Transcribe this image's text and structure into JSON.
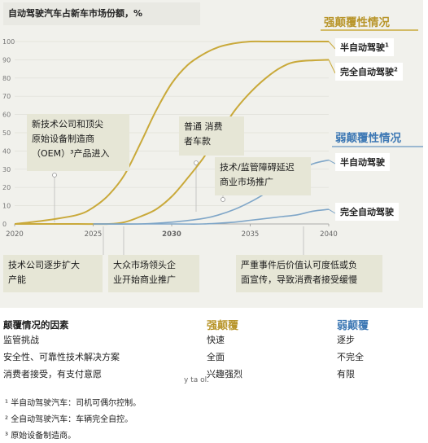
{
  "colors": {
    "strong": "#c9a93a",
    "weak": "#7fa6c8",
    "panel": "#f1f1ec",
    "annotation": "#e6e6d6",
    "strong_text": "#b8952a",
    "weak_text": "#3d78b4"
  },
  "chart_title": "自动驾驶汽车占新车市场份额，%",
  "header_strong": "强颠覆性情况",
  "header_weak": "弱颠覆性情况",
  "labels": {
    "strong_semi": "半自动驾驶",
    "strong_semi_sup": "1",
    "strong_full": "完全自动驾驶",
    "strong_full_sup": "2",
    "weak_semi": "半自动驾驶",
    "weak_full": "完全自动驾驶"
  },
  "annotations": [
    {
      "lines": [
        "新技术公司和顶尖",
        "原始设备制造商",
        "（OEM）³产品进入"
      ]
    },
    {
      "lines": [
        "普通 消费",
        "者车款"
      ]
    },
    {
      "lines": [
        "技术/监管障碍延迟",
        "商业市场推广"
      ]
    },
    {
      "lines": [
        "技术公司逐步扩大",
        "产能"
      ]
    },
    {
      "lines": [
        "大众市场领头企",
        "业开始商业推广"
      ]
    },
    {
      "lines": [
        "严重事件后价值认可度低或负",
        "面宣传，导致消费者接受缓慢"
      ]
    }
  ],
  "legend": {
    "factor_title": "颠覆情况的因素",
    "factors": [
      "监管挑战",
      "安全性、可靠性技术解决方案",
      "消费者接受，有支付意愿"
    ],
    "strong_title": "强颠覆",
    "strong": [
      "快速",
      "全面",
      "兴趣强烈"
    ],
    "weak_title": "弱颠覆",
    "weak": [
      "逐步",
      "不完全",
      "有限"
    ]
  },
  "faint_text": "y ta                                    ol.",
  "footnotes": [
    "¹ 半自动驾驶汽车：司机可偶尔控制。",
    "² 全自动驾驶汽车：车辆完全自控。",
    "³ 原始设备制造商。"
  ],
  "chart_data": {
    "type": "line",
    "title": "自动驾驶汽车占新车市场份额，%",
    "xlim": [
      2020,
      2040
    ],
    "ylim": [
      0,
      100
    ],
    "xticks": [
      "2020",
      "2025",
      "2030",
      "2035",
      "2040"
    ],
    "yticks": [
      "0",
      "10",
      "20",
      "30",
      "40",
      "50",
      "60",
      "70",
      "80",
      "90",
      "100"
    ],
    "series": [
      {
        "name": "强颠覆性情况 半自动驾驶",
        "group": "strong",
        "x": [
          2020,
          2022,
          2024,
          2025,
          2026,
          2027,
          2028,
          2029,
          2030,
          2031,
          2032,
          2033,
          2034,
          2035,
          2036,
          2038,
          2040
        ],
        "y": [
          0,
          2,
          5,
          9,
          16,
          27,
          44,
          62,
          77,
          87,
          93,
          97,
          99,
          100,
          100,
          100,
          100
        ]
      },
      {
        "name": "强颠覆性情况 完全自动驾驶",
        "group": "strong",
        "x": [
          2020,
          2022,
          2024,
          2026,
          2027,
          2028,
          2029,
          2030,
          2031,
          2032,
          2033,
          2034,
          2035,
          2036,
          2037,
          2038,
          2040
        ],
        "y": [
          0,
          0,
          0,
          0,
          1,
          4,
          8,
          15,
          25,
          36,
          49,
          62,
          72,
          80,
          86,
          89,
          90
        ]
      },
      {
        "name": "弱颠覆性情况 半自动驾驶",
        "group": "weak",
        "x": [
          2025,
          2028,
          2030,
          2032,
          2033,
          2034,
          2035,
          2036,
          2037,
          2038,
          2039,
          2040
        ],
        "y": [
          0,
          0,
          1,
          3,
          5,
          8,
          12,
          17,
          23,
          29,
          33,
          35
        ]
      },
      {
        "name": "弱颠覆性情况 完全自动驾驶",
        "group": "weak",
        "x": [
          2025,
          2030,
          2032,
          2034,
          2035,
          2036,
          2037,
          2038,
          2039,
          2040
        ],
        "y": [
          0,
          0,
          0,
          1,
          2,
          3,
          4,
          5,
          7,
          8
        ]
      }
    ]
  }
}
